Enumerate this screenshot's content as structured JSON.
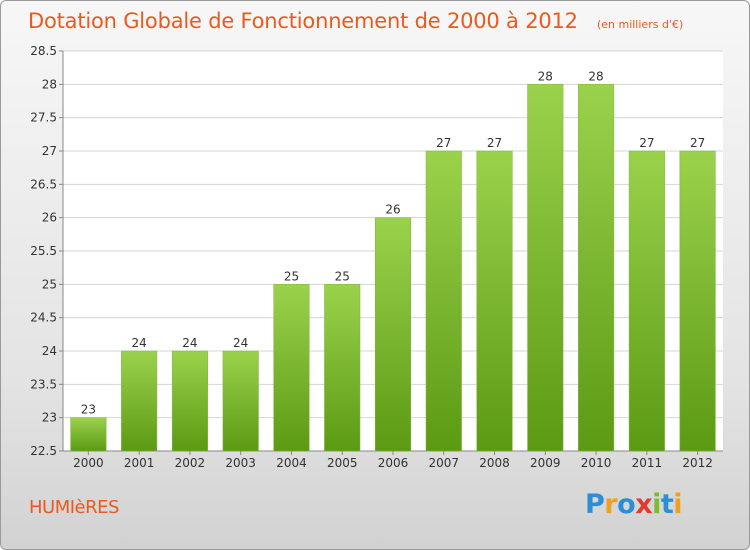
{
  "header": {
    "title": "Dotation Globale de Fonctionnement de 2000 à 2012",
    "subtitle": "(en milliers d'€)"
  },
  "footer": {
    "commune": "HUMIèRES",
    "logo_letters": [
      "P",
      "r",
      "o",
      "x",
      "i",
      "t",
      "i"
    ]
  },
  "colors": {
    "title": "#ea5a1e",
    "bar_top": "#9bd24c",
    "bar_bottom": "#5c9a14",
    "grid": "#d5d5d5"
  },
  "chart_data": {
    "type": "bar",
    "title": "Dotation Globale de Fonctionnement de 2000 à 2012",
    "subtitle": "(en milliers d'€)",
    "categories": [
      "2000",
      "2001",
      "2002",
      "2003",
      "2004",
      "2005",
      "2006",
      "2007",
      "2008",
      "2009",
      "2010",
      "2011",
      "2012"
    ],
    "values": [
      23,
      24,
      24,
      24,
      25,
      25,
      26,
      27,
      27,
      28,
      28,
      27,
      27
    ],
    "data_labels": [
      "23",
      "24",
      "24",
      "24",
      "25",
      "25",
      "26",
      "27",
      "27",
      "28",
      "28",
      "27",
      "27"
    ],
    "ylim": [
      22.5,
      28.5
    ],
    "yticks": [
      "22.5",
      "23",
      "23.5",
      "24",
      "24.5",
      "25",
      "25.5",
      "26",
      "26.5",
      "27",
      "27.5",
      "28",
      "28.5"
    ],
    "grid": true,
    "legend": "none"
  }
}
